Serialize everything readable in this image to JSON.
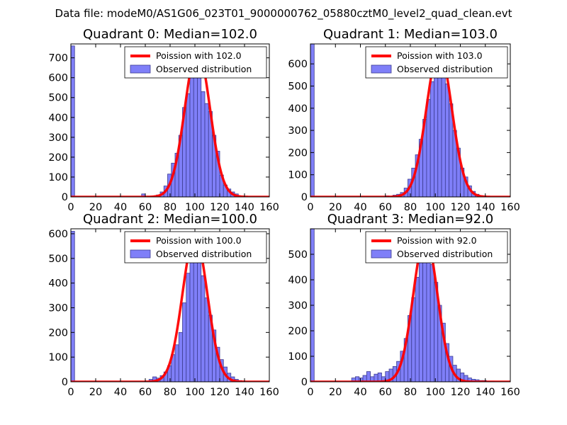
{
  "figure": {
    "title": "Data file: modeM0/AS1G06_023T01_9000000762_05880cztM0_level2_quad_clean.evt"
  },
  "colors": {
    "hist_fill": "#7f7ff8",
    "hist_edge": "#3c3c90",
    "poisson_line": "#ff0000",
    "axis": "#000000",
    "background": "#ffffff"
  },
  "chart_data": [
    {
      "type": "bar",
      "title": "Quadrant 0: Median=102.0",
      "median": 102.0,
      "legend": [
        "Poission with 102.0",
        "Observed distribution"
      ],
      "legend_position": "top-right",
      "xlim": [
        0,
        160
      ],
      "ylim": [
        0,
        770
      ],
      "xticks": [
        "0",
        "20",
        "40",
        "60",
        "80",
        "100",
        "120",
        "140",
        "160"
      ],
      "yticks": [
        "0",
        "100",
        "200",
        "300",
        "400",
        "500",
        "600",
        "700"
      ],
      "bin_width": 3,
      "bins": [
        [
          0,
          760
        ],
        [
          57,
          15
        ],
        [
          66,
          5
        ],
        [
          69,
          10
        ],
        [
          72,
          25
        ],
        [
          75,
          55
        ],
        [
          78,
          115
        ],
        [
          81,
          170
        ],
        [
          84,
          220
        ],
        [
          87,
          310
        ],
        [
          90,
          450
        ],
        [
          93,
          520
        ],
        [
          96,
          630
        ],
        [
          99,
          640
        ],
        [
          102,
          600
        ],
        [
          105,
          530
        ],
        [
          108,
          470
        ],
        [
          111,
          430
        ],
        [
          114,
          310
        ],
        [
          117,
          230
        ],
        [
          120,
          110
        ],
        [
          123,
          60
        ],
        [
          126,
          40
        ],
        [
          129,
          25
        ],
        [
          132,
          15
        ],
        [
          135,
          5
        ]
      ],
      "curve_peak": 740,
      "curve_sigma": 10.1
    },
    {
      "type": "bar",
      "title": "Quadrant 1: Median=103.0",
      "median": 103.0,
      "legend": [
        "Poission with 103.0",
        "Observed distribution"
      ],
      "legend_position": "top-right",
      "xlim": [
        0,
        160
      ],
      "ylim": [
        0,
        690
      ],
      "xticks": [
        "0",
        "20",
        "40",
        "60",
        "80",
        "100",
        "120",
        "140",
        "160"
      ],
      "yticks": [
        "0",
        "100",
        "200",
        "300",
        "400",
        "500",
        "600"
      ],
      "bin_width": 3,
      "bins": [
        [
          0,
          690
        ],
        [
          60,
          5
        ],
        [
          66,
          8
        ],
        [
          69,
          12
        ],
        [
          72,
          20
        ],
        [
          75,
          40
        ],
        [
          78,
          80
        ],
        [
          81,
          130
        ],
        [
          84,
          190
        ],
        [
          87,
          260
        ],
        [
          90,
          350
        ],
        [
          93,
          440
        ],
        [
          96,
          520
        ],
        [
          99,
          600
        ],
        [
          102,
          640
        ],
        [
          105,
          590
        ],
        [
          108,
          510
        ],
        [
          111,
          420
        ],
        [
          114,
          300
        ],
        [
          117,
          220
        ],
        [
          120,
          130
        ],
        [
          123,
          90
        ],
        [
          126,
          50
        ],
        [
          129,
          25
        ],
        [
          132,
          12
        ],
        [
          135,
          6
        ]
      ],
      "curve_peak": 660,
      "curve_sigma": 10.15
    },
    {
      "type": "bar",
      "title": "Quadrant 2: Median=100.0",
      "median": 100.0,
      "legend": [
        "Poission with 100.0",
        "Observed distribution"
      ],
      "legend_position": "top-right",
      "xlim": [
        0,
        160
      ],
      "ylim": [
        0,
        620
      ],
      "xticks": [
        "0",
        "20",
        "40",
        "60",
        "80",
        "100",
        "120",
        "140",
        "160"
      ],
      "yticks": [
        "0",
        "100",
        "200",
        "300",
        "400",
        "500",
        "600"
      ],
      "bin_width": 3,
      "bins": [
        [
          0,
          610
        ],
        [
          63,
          10
        ],
        [
          66,
          20
        ],
        [
          69,
          15
        ],
        [
          72,
          25
        ],
        [
          75,
          40
        ],
        [
          78,
          65
        ],
        [
          81,
          110
        ],
        [
          84,
          150
        ],
        [
          87,
          200
        ],
        [
          90,
          320
        ],
        [
          93,
          440
        ],
        [
          96,
          520
        ],
        [
          99,
          560
        ],
        [
          102,
          530
        ],
        [
          105,
          430
        ],
        [
          108,
          340
        ],
        [
          111,
          270
        ],
        [
          114,
          210
        ],
        [
          117,
          140
        ],
        [
          120,
          90
        ],
        [
          123,
          60
        ],
        [
          126,
          35
        ],
        [
          129,
          20
        ],
        [
          132,
          10
        ],
        [
          135,
          5
        ]
      ],
      "curve_peak": 590,
      "curve_sigma": 10
    },
    {
      "type": "bar",
      "title": "Quadrant 3: Median=92.0",
      "median": 92.0,
      "legend": [
        "Poission with 92.0",
        "Observed distribution"
      ],
      "legend_position": "top-right",
      "xlim": [
        0,
        160
      ],
      "ylim": [
        0,
        600
      ],
      "xticks": [
        "0",
        "20",
        "40",
        "60",
        "80",
        "100",
        "120",
        "140",
        "160"
      ],
      "yticks": [
        "0",
        "100",
        "200",
        "300",
        "400",
        "500"
      ],
      "bin_width": 3,
      "bins": [
        [
          0,
          600
        ],
        [
          33,
          15
        ],
        [
          36,
          20
        ],
        [
          39,
          15
        ],
        [
          42,
          25
        ],
        [
          45,
          40
        ],
        [
          48,
          20
        ],
        [
          51,
          30
        ],
        [
          54,
          35
        ],
        [
          57,
          20
        ],
        [
          60,
          40
        ],
        [
          63,
          50
        ],
        [
          66,
          60
        ],
        [
          69,
          80
        ],
        [
          72,
          120
        ],
        [
          75,
          170
        ],
        [
          78,
          260
        ],
        [
          81,
          330
        ],
        [
          84,
          410
        ],
        [
          87,
          500
        ],
        [
          90,
          510
        ],
        [
          93,
          490
        ],
        [
          96,
          460
        ],
        [
          99,
          390
        ],
        [
          102,
          300
        ],
        [
          105,
          230
        ],
        [
          108,
          150
        ],
        [
          111,
          100
        ],
        [
          114,
          65
        ],
        [
          117,
          50
        ],
        [
          120,
          35
        ],
        [
          123,
          25
        ],
        [
          126,
          15
        ],
        [
          129,
          10
        ],
        [
          132,
          8
        ],
        [
          135,
          5
        ],
        [
          138,
          5
        ],
        [
          141,
          3
        ],
        [
          144,
          3
        ]
      ],
      "curve_peak": 570,
      "curve_sigma": 9.6
    }
  ]
}
